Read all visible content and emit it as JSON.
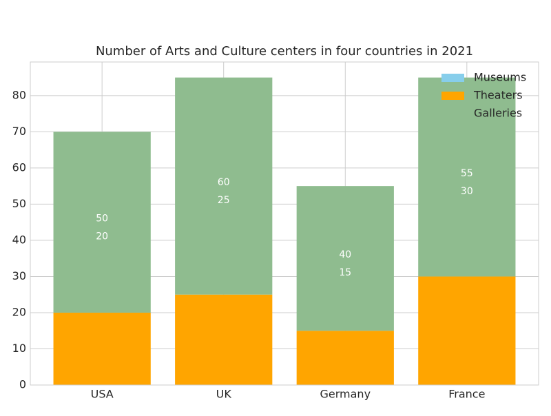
{
  "chart_data": {
    "type": "stacked_bar",
    "title": "Number of Arts and Culture centers in four countries in 2021",
    "categories": [
      "USA",
      "UK",
      "Germany",
      "France"
    ],
    "series": [
      {
        "name": "Museums",
        "color": "#87ceeb",
        "values": [
          null,
          null,
          null,
          null
        ]
      },
      {
        "name": "Theaters",
        "color": "#ffa500",
        "values": [
          20,
          25,
          15,
          30
        ]
      },
      {
        "name": "Galleries",
        "color": "#8fbc8f",
        "legend_color": "none",
        "values": [
          50,
          60,
          40,
          55
        ]
      }
    ],
    "ylim": [
      0,
      89.3
    ],
    "yticks": [
      0,
      10,
      20,
      30,
      40,
      50,
      60,
      70,
      80
    ],
    "grid": true,
    "legend": "upper right"
  }
}
